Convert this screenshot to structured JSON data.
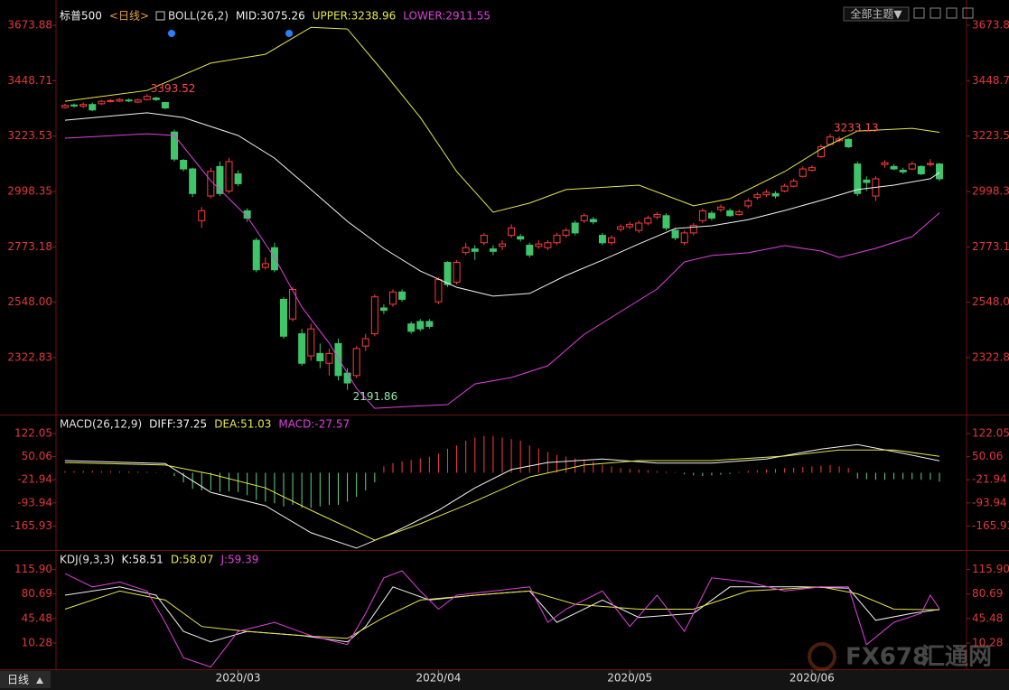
{
  "header": {
    "theme_button": "全部主题▼"
  },
  "footer": {
    "period": "日线",
    "watermark": [
      "FX678",
      "汇通网"
    ]
  },
  "chart_data": [
    {
      "type": "candlestick",
      "title": "标普500",
      "period": "<日线>",
      "indicator": "BOLL(26,2)",
      "up_color": "#ff3c3c",
      "down_color": "#3fc46a",
      "xlim": [
        0,
        96
      ],
      "ylim": [
        2095.3,
        3740
      ],
      "yticks": [
        3673.88,
        3448.71,
        3223.53,
        2998.35,
        2773.18,
        {
          "value": 2548,
          "label": "2548.00"
        },
        2322.83
      ],
      "open": [
        3340,
        3350,
        3345,
        3352,
        3355,
        3365,
        3366,
        3370,
        3362,
        3372,
        3378,
        3360,
        3240,
        3125,
        3090,
        2880,
        2980,
        3100,
        3000,
        3070,
        2920,
        2800,
        2690,
        2770,
        2560,
        2480,
        2420,
        2330,
        2340,
        2300,
        2380,
        2260,
        2250,
        2370,
        2420,
        2525,
        2540,
        2590,
        2460,
        2470,
        2470,
        2550,
        2710,
        2630,
        2750,
        2765,
        2790,
        2765,
        2775,
        2820,
        2815,
        2780,
        2775,
        2770,
        2790,
        2820,
        2870,
        2880,
        2885,
        2820,
        2790,
        2845,
        2855,
        2840,
        2870,
        2895,
        2900,
        2840,
        2790,
        2830,
        2880,
        2910,
        2925,
        2920,
        2905,
        2940,
        2975,
        2985,
        2990,
        3000,
        3020,
        3060,
        3085,
        3140,
        3190,
        3205,
        3210,
        3110,
        3045,
        2980,
        3108,
        3100,
        3085,
        3090,
        3100,
        3108,
        3110
      ],
      "high": [
        3355,
        3356,
        3360,
        3360,
        3370,
        3374,
        3378,
        3376,
        3376,
        3393.52,
        3384,
        3362,
        3250,
        3130,
        3095,
        2935,
        3095,
        3120,
        3135,
        3085,
        2930,
        2810,
        2730,
        2790,
        2570,
        2610,
        2440,
        2460,
        2380,
        2360,
        2400,
        2280,
        2370,
        2420,
        2580,
        2540,
        2600,
        2600,
        2470,
        2480,
        2480,
        2650,
        2715,
        2720,
        2790,
        2780,
        2830,
        2780,
        2800,
        2865,
        2825,
        2790,
        2800,
        2800,
        2830,
        2850,
        2880,
        2910,
        2895,
        2830,
        2820,
        2865,
        2875,
        2880,
        2900,
        2915,
        2910,
        2850,
        2840,
        2870,
        2930,
        2920,
        2945,
        2930,
        2925,
        2970,
        2995,
        3005,
        3000,
        3030,
        3050,
        3100,
        3105,
        3190,
        3233.13,
        3222,
        3215,
        3120,
        3060,
        3060,
        3125,
        3110,
        3095,
        3120,
        3105,
        3130,
        3115
      ],
      "low": [
        3335,
        3340,
        3338,
        3325,
        3350,
        3360,
        3362,
        3362,
        3358,
        3368,
        3366,
        3332,
        3120,
        3080,
        2975,
        2850,
        2970,
        2980,
        2990,
        3020,
        2875,
        2670,
        2680,
        2670,
        2400,
        2470,
        2290,
        2310,
        2280,
        2250,
        2230,
        2191.86,
        2240,
        2350,
        2410,
        2500,
        2530,
        2550,
        2420,
        2430,
        2440,
        2540,
        2610,
        2620,
        2740,
        2720,
        2780,
        2740,
        2760,
        2810,
        2795,
        2730,
        2765,
        2760,
        2780,
        2810,
        2820,
        2870,
        2865,
        2780,
        2780,
        2835,
        2845,
        2830,
        2860,
        2885,
        2840,
        2800,
        2780,
        2820,
        2870,
        2880,
        2915,
        2895,
        2900,
        2930,
        2965,
        2975,
        2970,
        2995,
        3015,
        3055,
        3080,
        3135,
        3185,
        3198,
        3175,
        2980,
        3000,
        2960,
        3095,
        3085,
        3070,
        3085,
        3065,
        3100,
        3040
      ],
      "close": [
        3348,
        3346,
        3352,
        3330,
        3365,
        3368,
        3372,
        3368,
        3370,
        3385,
        3372,
        3338,
        3130,
        3090,
        2990,
        2920,
        3080,
        2990,
        3120,
        3030,
        2890,
        2680,
        2705,
        2680,
        2410,
        2600,
        2300,
        2440,
        2310,
        2340,
        2250,
        2220,
        2360,
        2400,
        2570,
        2515,
        2590,
        2560,
        2430,
        2440,
        2450,
        2640,
        2620,
        2710,
        2770,
        2755,
        2820,
        2755,
        2785,
        2850,
        2805,
        2740,
        2785,
        2790,
        2820,
        2840,
        2830,
        2900,
        2875,
        2790,
        2810,
        2855,
        2865,
        2870,
        2890,
        2905,
        2850,
        2810,
        2830,
        2860,
        2920,
        2890,
        2935,
        2900,
        2915,
        2960,
        2985,
        2995,
        2980,
        3020,
        3040,
        3090,
        3095,
        3180,
        3220,
        3212,
        3180,
        2990,
        3035,
        3050,
        3115,
        3090,
        3078,
        3110,
        3070,
        3112,
        3050
      ],
      "series": [
        {
          "name": "MID:3075.26",
          "color": "#f2f2f2",
          "x": [
            0,
            9,
            13,
            19,
            23,
            27,
            31,
            35,
            39,
            43,
            47,
            51,
            55,
            59,
            63,
            67,
            71,
            75,
            79,
            83,
            87,
            91,
            95,
            96
          ],
          "values": [
            3288,
            3318,
            3299,
            3226,
            3134,
            3006,
            2877,
            2767,
            2675,
            2609,
            2573,
            2584,
            2657,
            2719,
            2785,
            2848,
            2859,
            2884,
            2921,
            2962,
            3006,
            3024,
            3050,
            3075.26
          ]
        },
        {
          "name": "UPPER:3238.96",
          "color": "#e6e64a",
          "x": [
            0,
            9,
            16,
            22,
            27,
            31,
            35,
            39,
            43,
            47,
            51,
            55,
            63,
            69,
            73,
            79,
            83,
            87,
            93,
            96
          ],
          "values": [
            3365,
            3409,
            3520,
            3556,
            3666,
            3659,
            3483,
            3299,
            3079,
            2914,
            2951,
            3006,
            3024,
            2940,
            2969,
            3079,
            3171,
            3244,
            3255,
            3238.96
          ]
        },
        {
          "name": "LOWER:2911.55",
          "color": "#e040e0",
          "x": [
            0,
            9,
            12,
            16,
            20,
            23,
            26,
            29,
            32,
            34,
            38,
            42,
            45,
            49,
            53,
            57,
            61,
            65,
            68,
            71,
            75,
            79,
            83,
            85,
            89,
            93,
            96
          ],
          "values": [
            3215,
            3233,
            3226,
            3042,
            2896,
            2730,
            2528,
            2382,
            2198,
            2117,
            2125,
            2132,
            2216,
            2242,
            2290,
            2418,
            2510,
            2602,
            2712,
            2738,
            2749,
            2778,
            2756,
            2730,
            2767,
            2815,
            2911.55
          ]
        }
      ],
      "annotations": [
        {
          "x": 9,
          "value": 3393.52
        },
        {
          "x": 84,
          "value": 3233.13
        },
        {
          "x": 31,
          "value": 2191.86
        }
      ]
    },
    {
      "type": "macd",
      "indicator": "MACD(26,12,9)",
      "xlim": [
        0,
        96
      ],
      "ylim": [
        -238,
        173
      ],
      "yticks": [
        122.05,
        50.06,
        -21.94,
        -93.94,
        -165.93
      ],
      "series": [
        {
          "name": "DIFF:37.25",
          "color": "#f2f2f2",
          "x": [
            0,
            11,
            16,
            22,
            27,
            32,
            36,
            41,
            45,
            49,
            53,
            59,
            65,
            71,
            77,
            83,
            87,
            91,
            96
          ],
          "values": [
            38,
            29,
            -61,
            -103,
            -187,
            -235,
            -187,
            -117,
            -47,
            10,
            32,
            43,
            30,
            30,
            43,
            74,
            88,
            66,
            37.25
          ]
        },
        {
          "name": "DEA:51.03",
          "color": "#e6e64a",
          "x": [
            0,
            11,
            16,
            22,
            27,
            34,
            39,
            45,
            51,
            57,
            63,
            71,
            79,
            85,
            91,
            96
          ],
          "values": [
            32,
            24,
            -4,
            -47,
            -117,
            -210,
            -159,
            -89,
            -13,
            24,
            38,
            38,
            52,
            71,
            71,
            51.03
          ]
        }
      ],
      "histogram": {
        "name": "MACD:-27.57",
        "color": "#e040e0",
        "up_color": "#ff3c3c",
        "down_color": "#5fd884",
        "values": [
          5,
          5,
          6,
          6,
          5,
          5,
          4,
          4,
          4,
          3,
          2,
          1,
          -10,
          -30,
          -50,
          -55,
          -55,
          -60,
          -58,
          -60,
          -70,
          -85,
          -90,
          -95,
          -105,
          -100,
          -110,
          -110,
          -105,
          -100,
          -100,
          -90,
          -75,
          -55,
          -30,
          20,
          30,
          35,
          40,
          45,
          50,
          60,
          75,
          85,
          100,
          110,
          115,
          115,
          110,
          105,
          100,
          85,
          75,
          65,
          55,
          50,
          45,
          40,
          35,
          25,
          20,
          15,
          12,
          10,
          8,
          5,
          3,
          2,
          -5,
          -8,
          -10,
          -8,
          -6,
          -4,
          3,
          6,
          8,
          10,
          12,
          14,
          16,
          18,
          20,
          22,
          24,
          20,
          15,
          -18,
          -20,
          -22,
          -22,
          -20,
          -20,
          -20,
          -22,
          -22,
          -27.57
        ]
      }
    },
    {
      "type": "line",
      "indicator": "KDJ(9,3,3)",
      "xlim": [
        0,
        96
      ],
      "ylim": [
        -26,
        140
      ],
      "yticks": [
        {
          "value": 115.9,
          "label": "115.90"
        },
        80.69,
        45.48,
        10.28
      ],
      "xticks": [
        {
          "value": 19,
          "label": "2020/03"
        },
        {
          "value": 41,
          "label": "2020/04"
        },
        {
          "value": 62,
          "label": "2020/05"
        },
        {
          "value": 82,
          "label": "2020/06"
        }
      ],
      "series": [
        {
          "name": "K:58.51",
          "color": "#f2f2f2",
          "x": [
            0,
            6,
            10,
            13,
            16,
            20,
            26,
            31,
            33,
            36,
            40,
            45,
            51,
            54,
            59,
            63,
            69,
            73,
            81,
            86,
            89,
            93,
            96
          ],
          "values": [
            79,
            91,
            79,
            27,
            12,
            27,
            21,
            12,
            34,
            91,
            72,
            79,
            85,
            40,
            72,
            47,
            53,
            91,
            91,
            89,
            43,
            53,
            58.51
          ]
        },
        {
          "name": "D:58.07",
          "color": "#e6e64a",
          "x": [
            0,
            6,
            11,
            15,
            20,
            26,
            31,
            35,
            39,
            45,
            51,
            56,
            63,
            69,
            75,
            83,
            87,
            91,
            96
          ],
          "values": [
            59,
            85,
            72,
            34,
            27,
            21,
            17,
            47,
            72,
            79,
            85,
            66,
            59,
            59,
            85,
            91,
            81,
            59,
            58.07
          ]
        },
        {
          "name": "J:59.39",
          "color": "#e040e0",
          "x": [
            0,
            3,
            6,
            9,
            11,
            13,
            16,
            19,
            23,
            27,
            31,
            33,
            35,
            37,
            39,
            41,
            43,
            47,
            51,
            53,
            55,
            59,
            62,
            65,
            68,
            71,
            75,
            79,
            83,
            86,
            88,
            91,
            94,
            95,
            96
          ],
          "values": [
            110,
            91,
            98,
            85,
            40,
            -11,
            -24,
            27,
            40,
            21,
            8,
            53,
            104,
            114,
            85,
            59,
            79,
            85,
            91,
            40,
            59,
            85,
            34,
            79,
            27,
            104,
            98,
            85,
            91,
            91,
            8,
            40,
            53,
            79,
            59.39
          ]
        }
      ]
    }
  ]
}
